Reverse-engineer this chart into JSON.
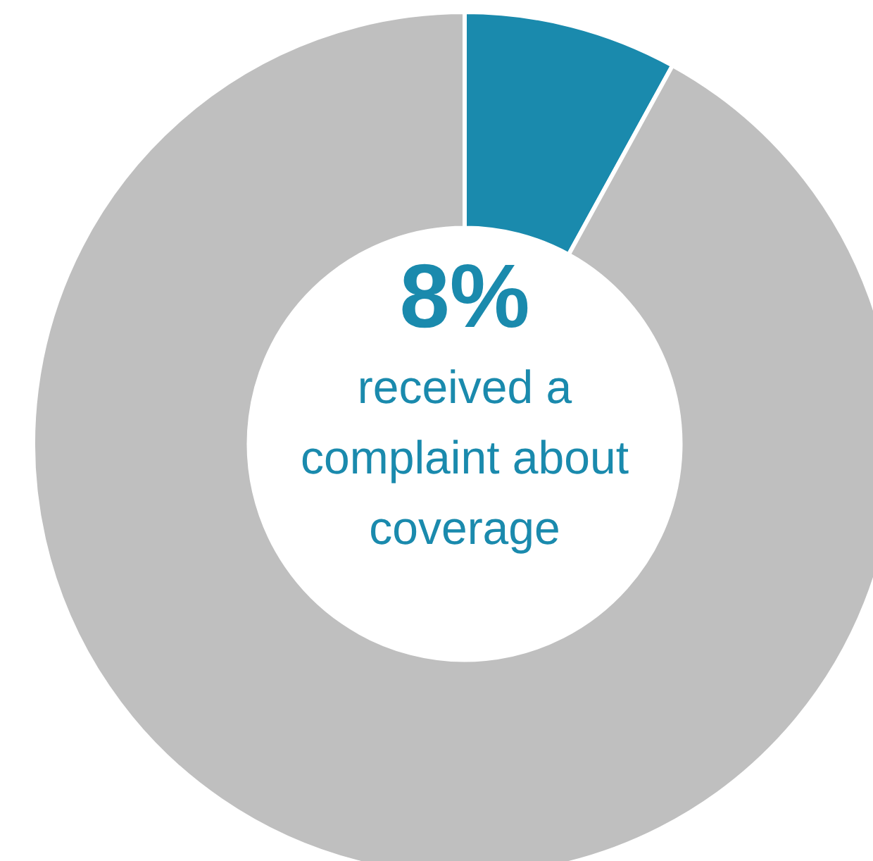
{
  "chart_data": {
    "type": "donut",
    "categories": [
      null,
      null
    ],
    "values": [
      8,
      92
    ],
    "colors": [
      "#1a8aad",
      "#bfbfbf"
    ],
    "annotations": [
      "8%",
      "received a complaint about coverage"
    ],
    "legend": false
  }
}
